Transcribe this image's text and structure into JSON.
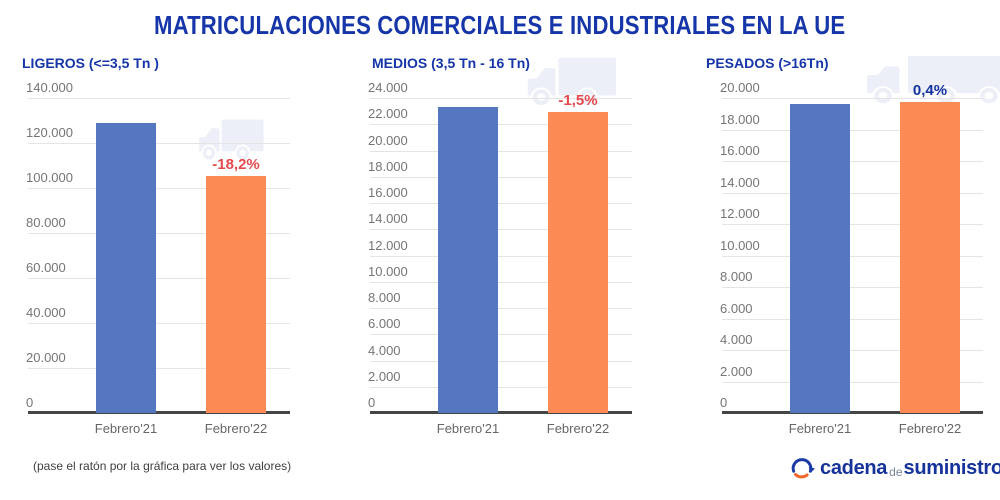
{
  "page": {
    "title": "MATRICULACIONES COMERCIALES E INDUSTRIALES EN LA UE",
    "footnote": "(pase el ratón por la gráfica para ver los valores)"
  },
  "colors": {
    "title_blue": "#1535A8",
    "bar_blue": "#5577C0",
    "bar_orange": "#FC8A55",
    "negative_red": "#E5494D",
    "positive_blue": "#14339E",
    "gridline_gray": "#E4E4E4",
    "axis_text_gray": "#757575",
    "baseline_dark": "#454545",
    "watermark": "#ECEFF7",
    "logo_blue": "#16339B",
    "logo_orange": "#F2662B"
  },
  "logo": {
    "word1": "cadena",
    "word2": "de",
    "word3": "suministro",
    "icon": "cycle-arrows-icon"
  },
  "chart_data": [
    {
      "type": "bar",
      "title": "LIGEROS (<=3,5 Tn )",
      "categories": [
        "Febrero'21",
        "Febrero'22"
      ],
      "values": [
        129000,
        105500
      ],
      "bar_colors": [
        "#5577C0",
        "#FC8A55"
      ],
      "change_label": "-18,2%",
      "change_color": "#E5494D",
      "ylim": [
        0,
        140000
      ],
      "ytick_step": 20000,
      "ytick_labels": [
        "140.000",
        "120.000",
        "100.000",
        "80.000",
        "60.000",
        "40.000",
        "20.000",
        "0"
      ],
      "grid": true,
      "legend": false,
      "watermark_icon": "box-truck-icon"
    },
    {
      "type": "bar",
      "title": "MEDIOS (3,5 Tn - 16 Tn)",
      "categories": [
        "Febrero'21",
        "Febrero'22"
      ],
      "values": [
        23300,
        22950
      ],
      "bar_colors": [
        "#5577C0",
        "#FC8A55"
      ],
      "change_label": "-1,5%",
      "change_color": "#E5494D",
      "ylim": [
        0,
        24000
      ],
      "ytick_step": 2000,
      "ytick_labels": [
        "24.000",
        "22.000",
        "20.000",
        "18.000",
        "16.000",
        "14.000",
        "12.000",
        "10.000",
        "8.000",
        "6.000",
        "4.000",
        "2.000",
        "0"
      ],
      "grid": true,
      "legend": false,
      "watermark_icon": "box-truck-icon"
    },
    {
      "type": "bar",
      "title": "PESADOS (>16Tn)",
      "categories": [
        "Febrero'21",
        "Febrero'22"
      ],
      "values": [
        19650,
        19730
      ],
      "bar_colors": [
        "#5577C0",
        "#FC8A55"
      ],
      "change_label": "0,4%",
      "change_color": "#14339E",
      "ylim": [
        0,
        20000
      ],
      "ytick_step": 2000,
      "ytick_labels": [
        "20.000",
        "18.000",
        "16.000",
        "14.000",
        "12.000",
        "10.000",
        "8.000",
        "6.000",
        "4.000",
        "2.000",
        "0"
      ],
      "grid": true,
      "legend": false,
      "watermark_icon": "semi-truck-icon"
    }
  ]
}
